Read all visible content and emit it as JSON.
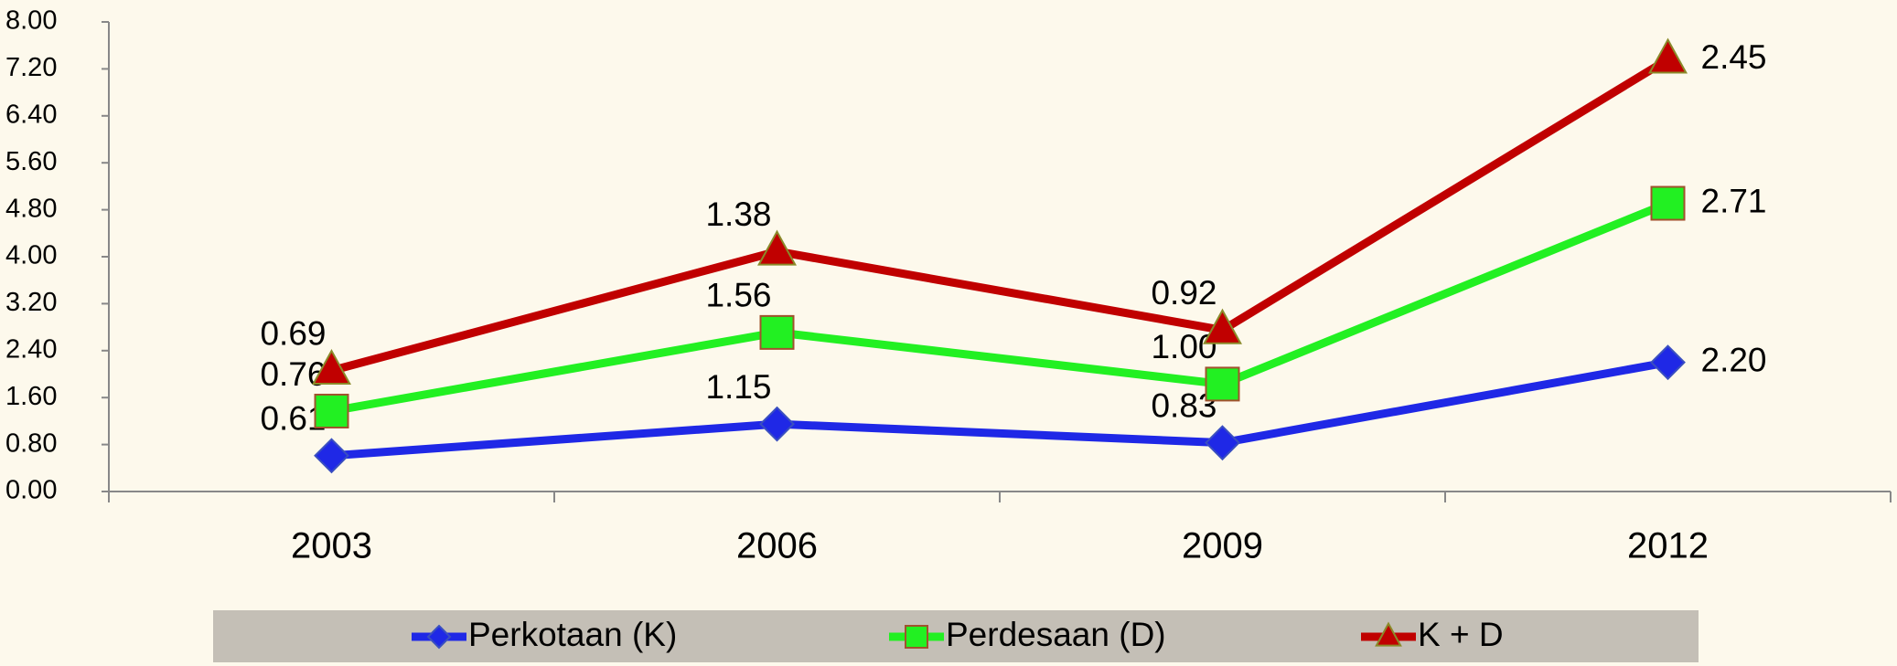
{
  "chart_data": {
    "type": "line",
    "stacked": true,
    "categories": [
      "2003",
      "2006",
      "2009",
      "2012"
    ],
    "series": [
      {
        "name": "Perkotaan (K)",
        "color": "#1f28e6",
        "marker": "diamond",
        "values": [
          0.61,
          1.15,
          0.83,
          2.2
        ],
        "value_labels": [
          "0.61",
          "1.15",
          "0.83",
          "2.20"
        ]
      },
      {
        "name": "Perdesaan (D)",
        "color": "#22f022",
        "marker": "square",
        "values": [
          0.76,
          1.56,
          1.0,
          2.71
        ],
        "value_labels": [
          "0.76",
          "1.56",
          "1.00",
          "2.71"
        ]
      },
      {
        "name": "K + D",
        "color": "#c00000",
        "marker": "triangle",
        "values": [
          0.69,
          1.38,
          0.92,
          2.45
        ],
        "value_labels": [
          "0.69",
          "1.38",
          "0.92",
          "2.45"
        ]
      }
    ],
    "ylim": [
      0,
      8
    ],
    "yticks": [
      {
        "value": 0,
        "label": "0.00"
      },
      {
        "value": 0.8,
        "label": "0.80"
      },
      {
        "value": 1.6,
        "label": "1.60"
      },
      {
        "value": 2.4,
        "label": "2.40"
      },
      {
        "value": 3.2,
        "label": "3.20"
      },
      {
        "value": 4,
        "label": "4.00"
      },
      {
        "value": 4.8,
        "label": "4.80"
      },
      {
        "value": 5.6,
        "label": "5.60"
      },
      {
        "value": 6.4,
        "label": "6.40"
      },
      {
        "value": 7.2,
        "label": "7.20"
      },
      {
        "value": 8,
        "label": "8.00"
      }
    ],
    "grid": false,
    "legend": "bottom"
  }
}
